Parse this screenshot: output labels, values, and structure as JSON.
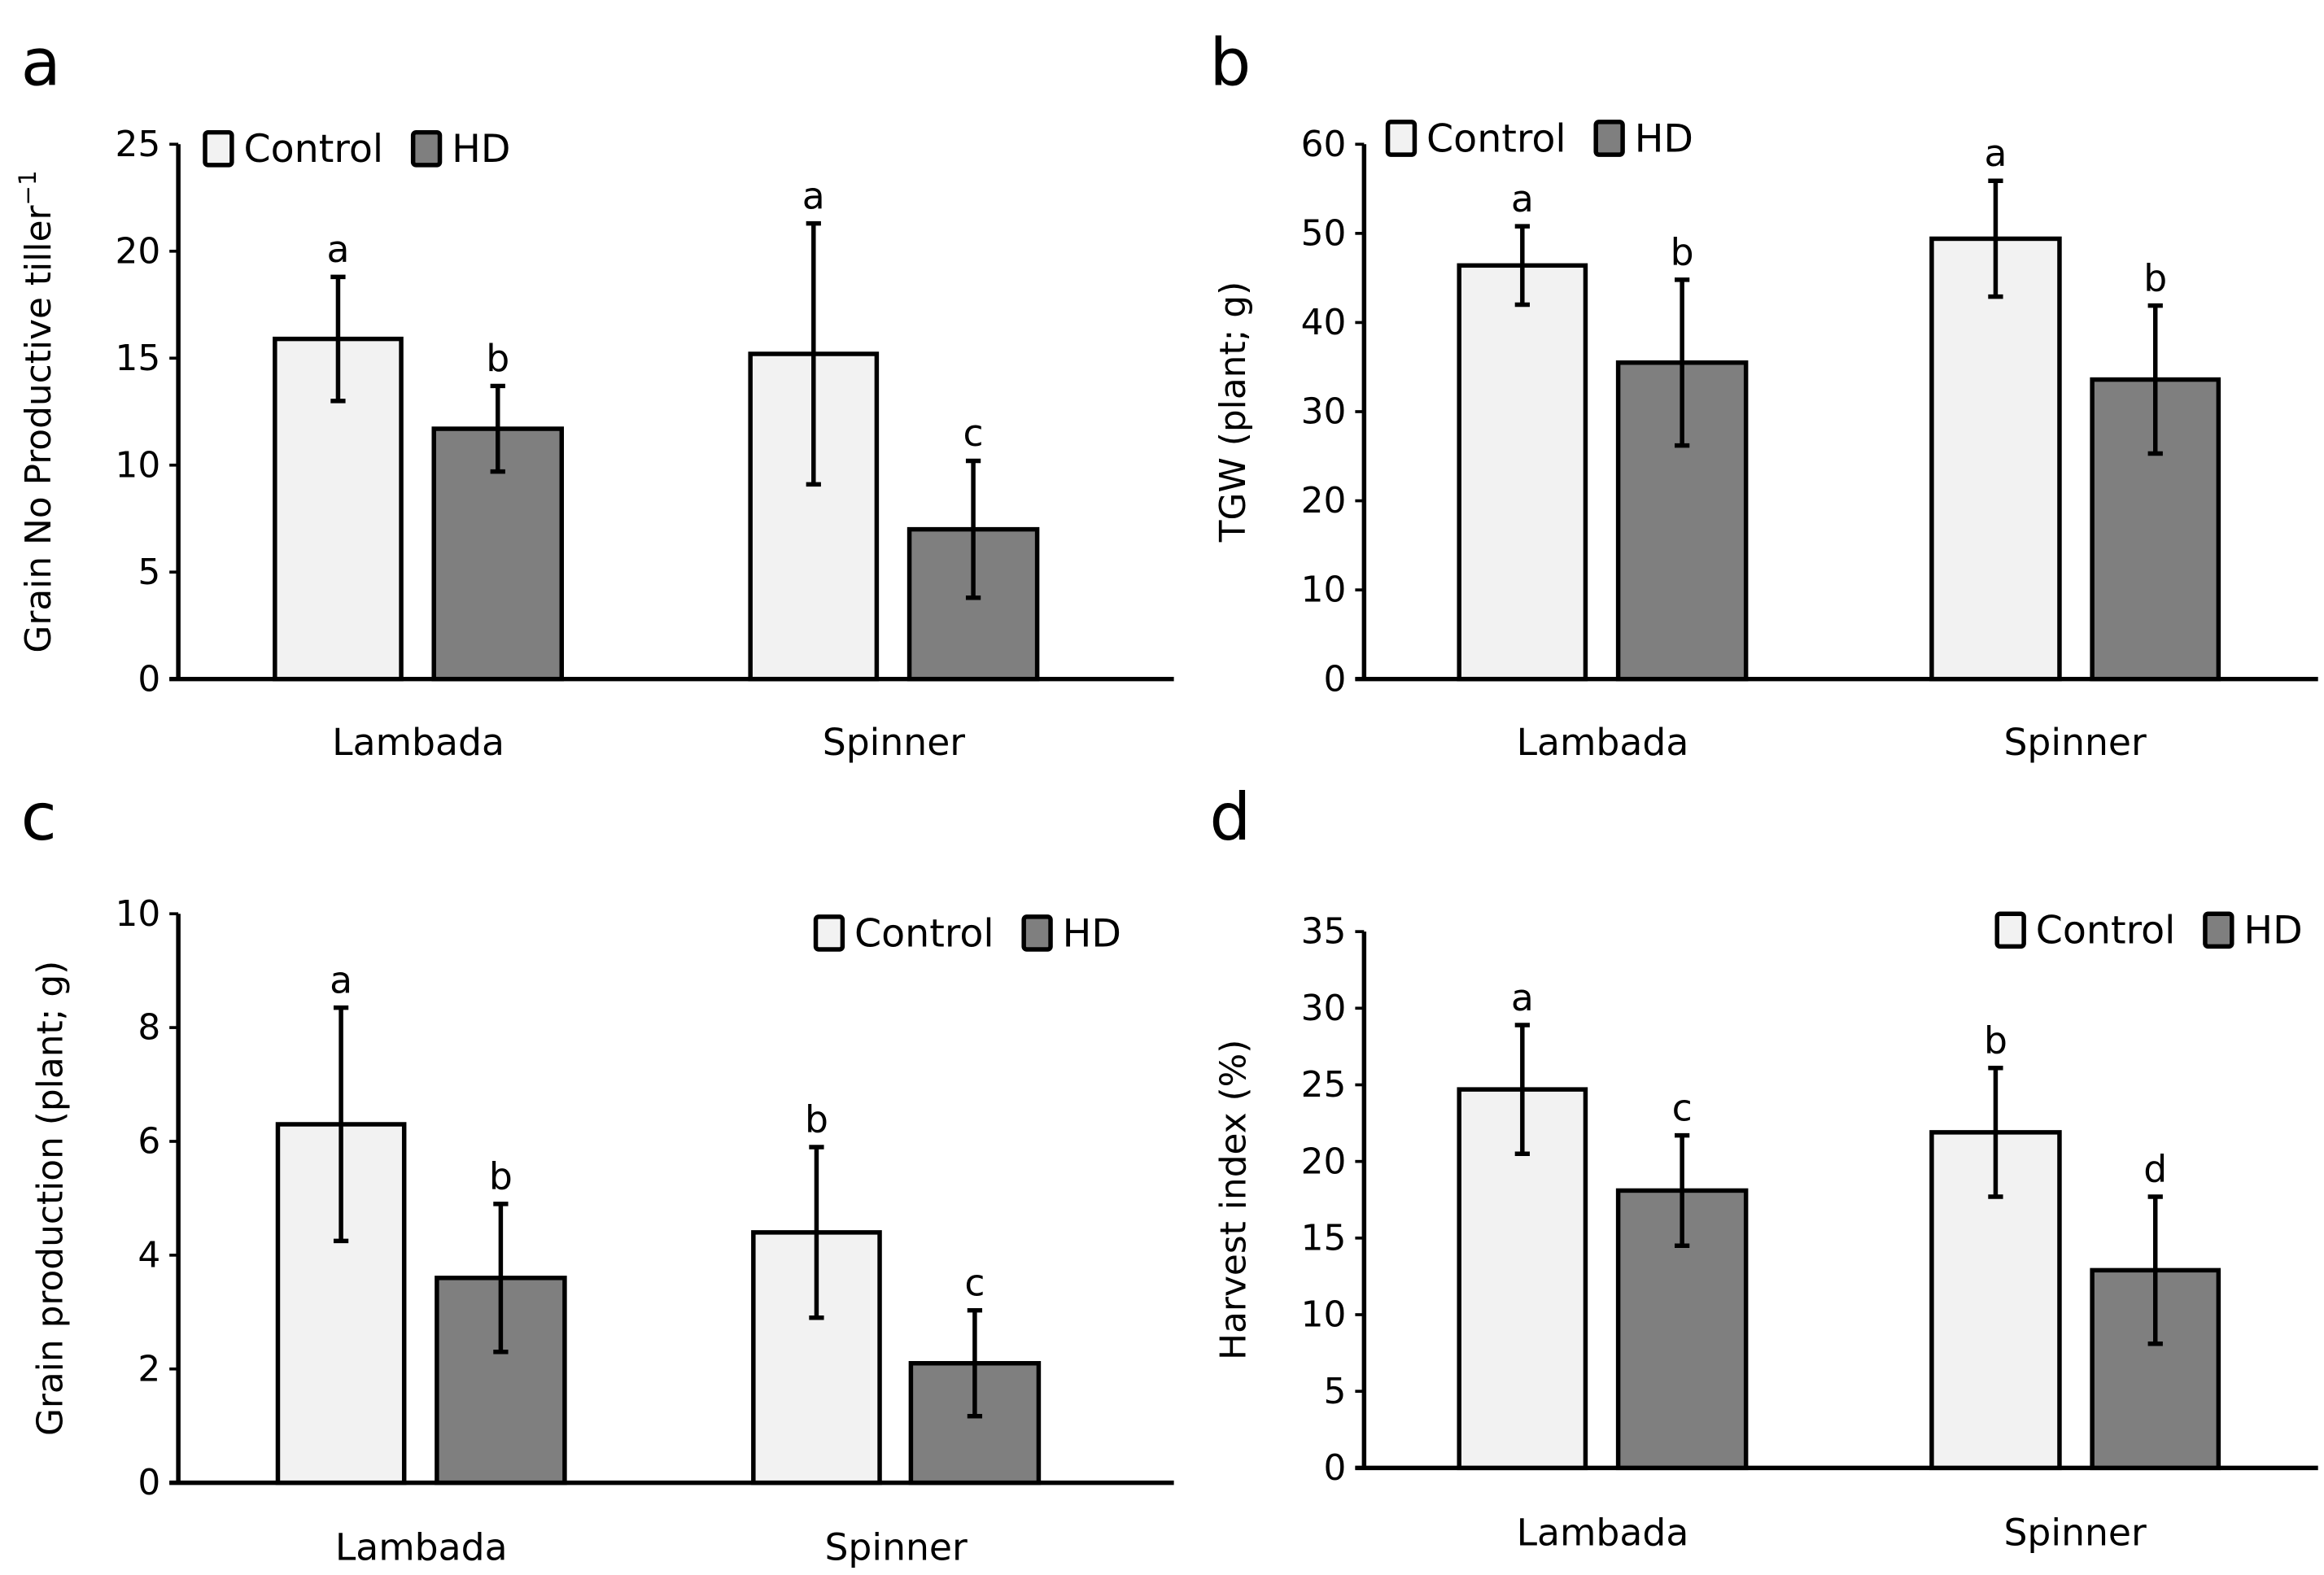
{
  "colors": {
    "Control": "#f2f2f2",
    "HD": "#7f7f7f",
    "axis": "#000000"
  },
  "chart_data": [
    {
      "panel": "a",
      "type": "bar",
      "ylabel": "Grain No  Productive tiller",
      "ylabel_sup": "−1",
      "categories": [
        "Lambada",
        "Spinner"
      ],
      "ylim": [
        0,
        25
      ],
      "yticks": [
        0,
        5,
        10,
        15,
        20,
        25
      ],
      "legend": "top-left",
      "series": [
        {
          "name": "Control",
          "values": [
            15.9,
            15.2
          ],
          "errors": [
            2.9,
            6.1
          ],
          "letters": [
            "a",
            "a"
          ]
        },
        {
          "name": "HD",
          "values": [
            11.7,
            7.0
          ],
          "errors": [
            2.0,
            3.2
          ],
          "letters": [
            "b",
            "c"
          ]
        }
      ]
    },
    {
      "panel": "b",
      "type": "bar",
      "ylabel": "TGW (plant; g)",
      "ylabel_sup": "",
      "categories": [
        "Lambada",
        "Spinner"
      ],
      "ylim": [
        0,
        60
      ],
      "yticks": [
        0,
        10,
        20,
        30,
        40,
        50,
        60
      ],
      "legend": "top-left",
      "series": [
        {
          "name": "Control",
          "values": [
            46.4,
            49.4
          ],
          "errors": [
            4.4,
            6.5
          ],
          "letters": [
            "a",
            "a"
          ]
        },
        {
          "name": "HD",
          "values": [
            35.5,
            33.6
          ],
          "errors": [
            9.3,
            8.3
          ],
          "letters": [
            "b",
            "b"
          ]
        }
      ]
    },
    {
      "panel": "c",
      "type": "bar",
      "ylabel": "Grain production (plant; g)",
      "ylabel_sup": "",
      "categories": [
        "Lambada",
        "Spinner"
      ],
      "ylim": [
        0,
        10
      ],
      "yticks": [
        0,
        2,
        4,
        6,
        8,
        10
      ],
      "legend": "top-right",
      "series": [
        {
          "name": "Control",
          "values": [
            6.3,
            4.4
          ],
          "errors": [
            2.05,
            1.5
          ],
          "letters": [
            "a",
            "b"
          ]
        },
        {
          "name": "HD",
          "values": [
            3.6,
            2.1
          ],
          "errors": [
            1.3,
            0.93
          ],
          "letters": [
            "b",
            "c"
          ]
        }
      ]
    },
    {
      "panel": "d",
      "type": "bar",
      "ylabel": "Harvest index (%)",
      "ylabel_sup": "",
      "categories": [
        "Lambada",
        "Spinner"
      ],
      "ylim": [
        0,
        35
      ],
      "yticks": [
        0,
        5,
        10,
        15,
        20,
        25,
        30,
        35
      ],
      "legend": "top-right",
      "series": [
        {
          "name": "Control",
          "values": [
            24.7,
            21.9
          ],
          "errors": [
            4.2,
            4.2
          ],
          "letters": [
            "a",
            "b"
          ]
        },
        {
          "name": "HD",
          "values": [
            18.1,
            12.9
          ],
          "errors": [
            3.6,
            4.8
          ],
          "letters": [
            "c",
            "d"
          ]
        }
      ]
    }
  ]
}
